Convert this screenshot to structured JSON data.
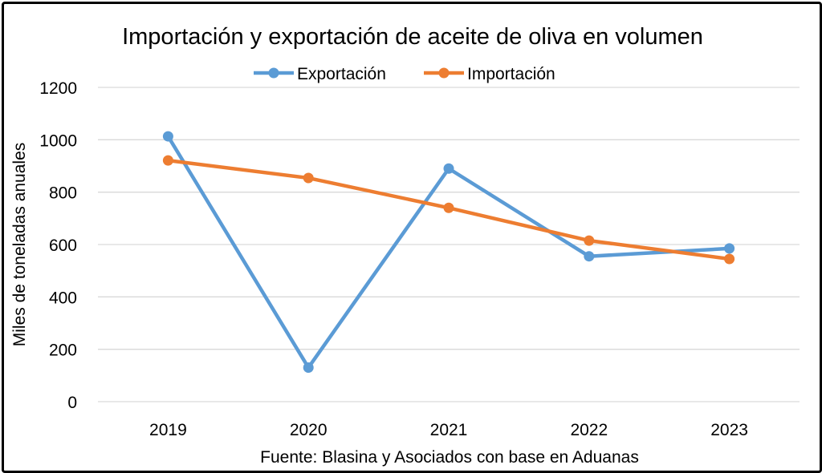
{
  "chart_data": {
    "type": "line",
    "title": "Importación y exportación de aceite de oliva en volumen",
    "xlabel": "Fuente: Blasina y Asociados con base en Aduanas",
    "ylabel": "Miles de toneladas anuales",
    "categories": [
      "2019",
      "2020",
      "2021",
      "2022",
      "2023"
    ],
    "ylim": [
      0,
      1200
    ],
    "yticks": [
      "0",
      "200",
      "400",
      "600",
      "800",
      "1000",
      "1200"
    ],
    "grid": true,
    "legend_position": "top",
    "series": [
      {
        "name": "Exportación",
        "color": "#5b9bd5",
        "values": [
          1013,
          130,
          890,
          555,
          585
        ]
      },
      {
        "name": "Importación",
        "color": "#ed7d31",
        "values": [
          921,
          854,
          740,
          615,
          545
        ]
      }
    ]
  }
}
